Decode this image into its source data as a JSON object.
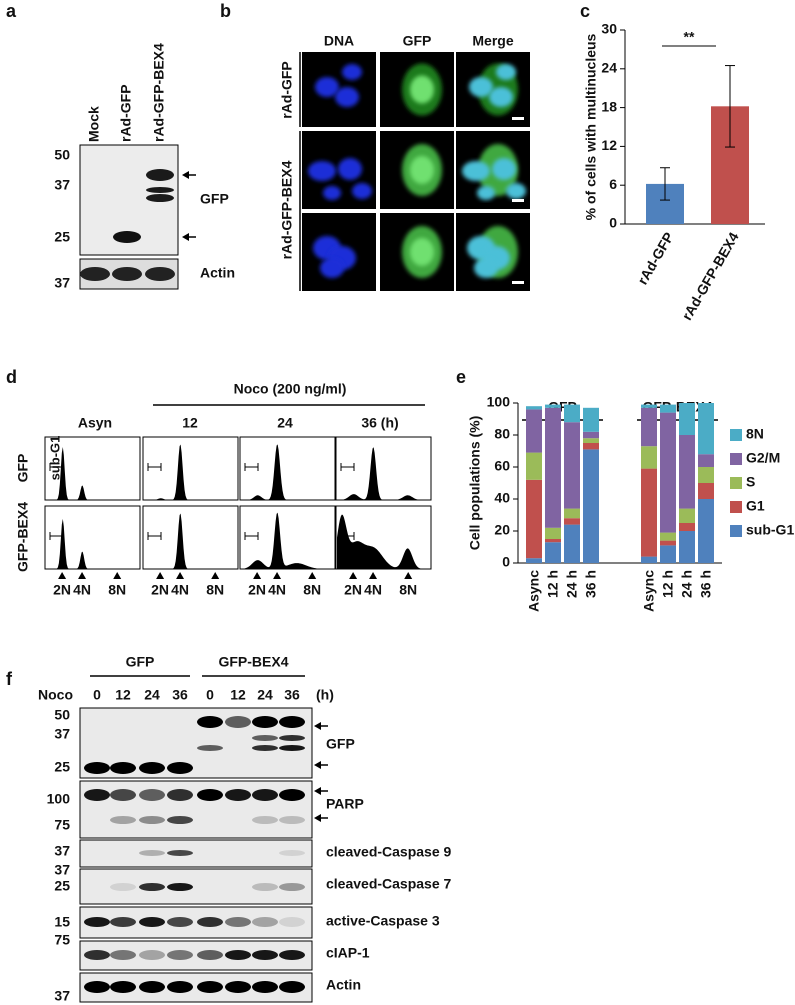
{
  "panel_a": {
    "label": "a",
    "lanes": [
      "Mock",
      "rAd-GFP",
      "rAd-GFP-BEX4"
    ],
    "gfp_markers": [
      "50",
      "37",
      "25"
    ],
    "actin_markers": [
      "37"
    ],
    "blots": [
      "GFP",
      "Actin"
    ]
  },
  "panel_b": {
    "label": "b",
    "channels": [
      "DNA",
      "GFP",
      "Merge"
    ],
    "conditions": [
      "rAd-GFP",
      "rAd-GFP-BEX4"
    ]
  },
  "panel_d": {
    "label": "d",
    "treatment": "Noco (200 ng/ml)",
    "timepoints": [
      "Asyn",
      "12",
      "24",
      "36 (h)"
    ],
    "rows": [
      "GFP",
      "GFP-BEX4"
    ],
    "gate": "sub-G1",
    "ploidy": [
      "2N",
      "4N",
      "8N"
    ]
  },
  "panel_f": {
    "label": "f",
    "groups": [
      "GFP",
      "GFP-BEX4"
    ],
    "treatment": "Noco",
    "timepoints": [
      "0",
      "12",
      "24",
      "36"
    ],
    "unit": "(h)",
    "blots": [
      {
        "name": "GFP",
        "markers": [
          "50",
          "37",
          "25"
        ]
      },
      {
        "name": "PARP",
        "markers": [
          "100",
          "75"
        ]
      },
      {
        "name": "cleaved-Caspase 9",
        "markers": [
          "37"
        ]
      },
      {
        "name": "cleaved-Caspase 7",
        "markers": [
          "37",
          "25"
        ]
      },
      {
        "name": "active-Caspase 3",
        "markers": [
          "15"
        ]
      },
      {
        "name": "cIAP-1",
        "markers": [
          "75"
        ]
      },
      {
        "name": "Actin",
        "markers": [
          "37"
        ]
      }
    ]
  },
  "chart_data": [
    {
      "type": "bar",
      "panel_label": "c",
      "categories": [
        "rAd-GFP",
        "rAd-GFP-BEX4"
      ],
      "values": [
        6.2,
        18.2
      ],
      "errors": [
        2.5,
        6.3
      ],
      "colors": [
        "#4f81bd",
        "#c0504d"
      ],
      "ylabel": "% of cells with multinucleus",
      "ylim": [
        0,
        30
      ],
      "yticks": [
        0,
        6,
        12,
        18,
        24,
        30
      ],
      "annotation": "**"
    },
    {
      "type": "stacked_bar",
      "panel_label": "e",
      "groups": [
        "GFP",
        "GFP-BEX4"
      ],
      "categories": [
        "Async",
        "12 h",
        "24 h",
        "36 h",
        "Async",
        "12 h",
        "24 h",
        "36 h"
      ],
      "ylabel": "Cell populations (%)",
      "ylim": [
        0,
        100
      ],
      "yticks": [
        0,
        20,
        40,
        60,
        80,
        100
      ],
      "series": [
        {
          "name": "sub-G1",
          "color": "#4f81bd",
          "values": [
            3,
            13,
            24,
            71,
            4,
            11,
            20,
            40
          ]
        },
        {
          "name": "G1",
          "color": "#c0504d",
          "values": [
            49,
            2,
            4,
            4,
            55,
            3,
            5,
            10
          ]
        },
        {
          "name": "S",
          "color": "#9bbb59",
          "values": [
            17,
            7,
            6,
            3,
            14,
            5,
            9,
            10
          ]
        },
        {
          "name": "G2/M",
          "color": "#8064a2",
          "values": [
            27,
            75,
            54,
            4,
            24,
            75,
            46,
            8
          ]
        },
        {
          "name": "8N",
          "color": "#4bacc6",
          "values": [
            2,
            2,
            11,
            15,
            2,
            5,
            20,
            32
          ]
        }
      ]
    }
  ]
}
